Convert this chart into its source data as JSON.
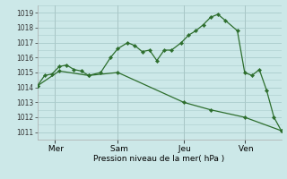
{
  "xlabel": "Pression niveau de la mer( hPa )",
  "background_color": "#cce8e8",
  "grid_color": "#aacccc",
  "line_color": "#2d6e2d",
  "marker_color": "#2d6e2d",
  "ylim": [
    1010.5,
    1019.5
  ],
  "yticks": [
    1011,
    1012,
    1013,
    1014,
    1015,
    1016,
    1017,
    1018,
    1019
  ],
  "xlim": [
    0,
    1.0
  ],
  "day_labels": [
    " Mer",
    " Sam",
    " Jeu",
    " Ven"
  ],
  "day_positions": [
    0.07,
    0.33,
    0.6,
    0.85
  ],
  "series1_x": [
    0.0,
    0.03,
    0.06,
    0.09,
    0.12,
    0.15,
    0.18,
    0.21,
    0.26,
    0.3,
    0.33,
    0.37,
    0.4,
    0.43,
    0.46,
    0.49,
    0.52,
    0.55,
    0.59,
    0.62,
    0.65,
    0.68,
    0.71,
    0.74,
    0.77,
    0.82,
    0.85,
    0.88,
    0.91,
    0.94,
    0.97,
    1.0
  ],
  "series1_y": [
    1014.1,
    1014.8,
    1014.9,
    1015.4,
    1015.5,
    1015.2,
    1015.1,
    1014.8,
    1015.0,
    1016.0,
    1016.6,
    1017.0,
    1016.8,
    1016.4,
    1016.5,
    1015.8,
    1016.5,
    1016.5,
    1017.0,
    1017.5,
    1017.8,
    1018.2,
    1018.7,
    1018.9,
    1018.5,
    1017.8,
    1015.0,
    1014.8,
    1015.2,
    1013.8,
    1012.0,
    1011.1
  ],
  "series2_x": [
    0.0,
    0.09,
    0.21,
    0.33,
    0.6,
    0.71,
    0.85,
    1.0
  ],
  "series2_y": [
    1014.1,
    1015.1,
    1014.8,
    1015.0,
    1013.0,
    1012.5,
    1012.0,
    1011.1
  ]
}
